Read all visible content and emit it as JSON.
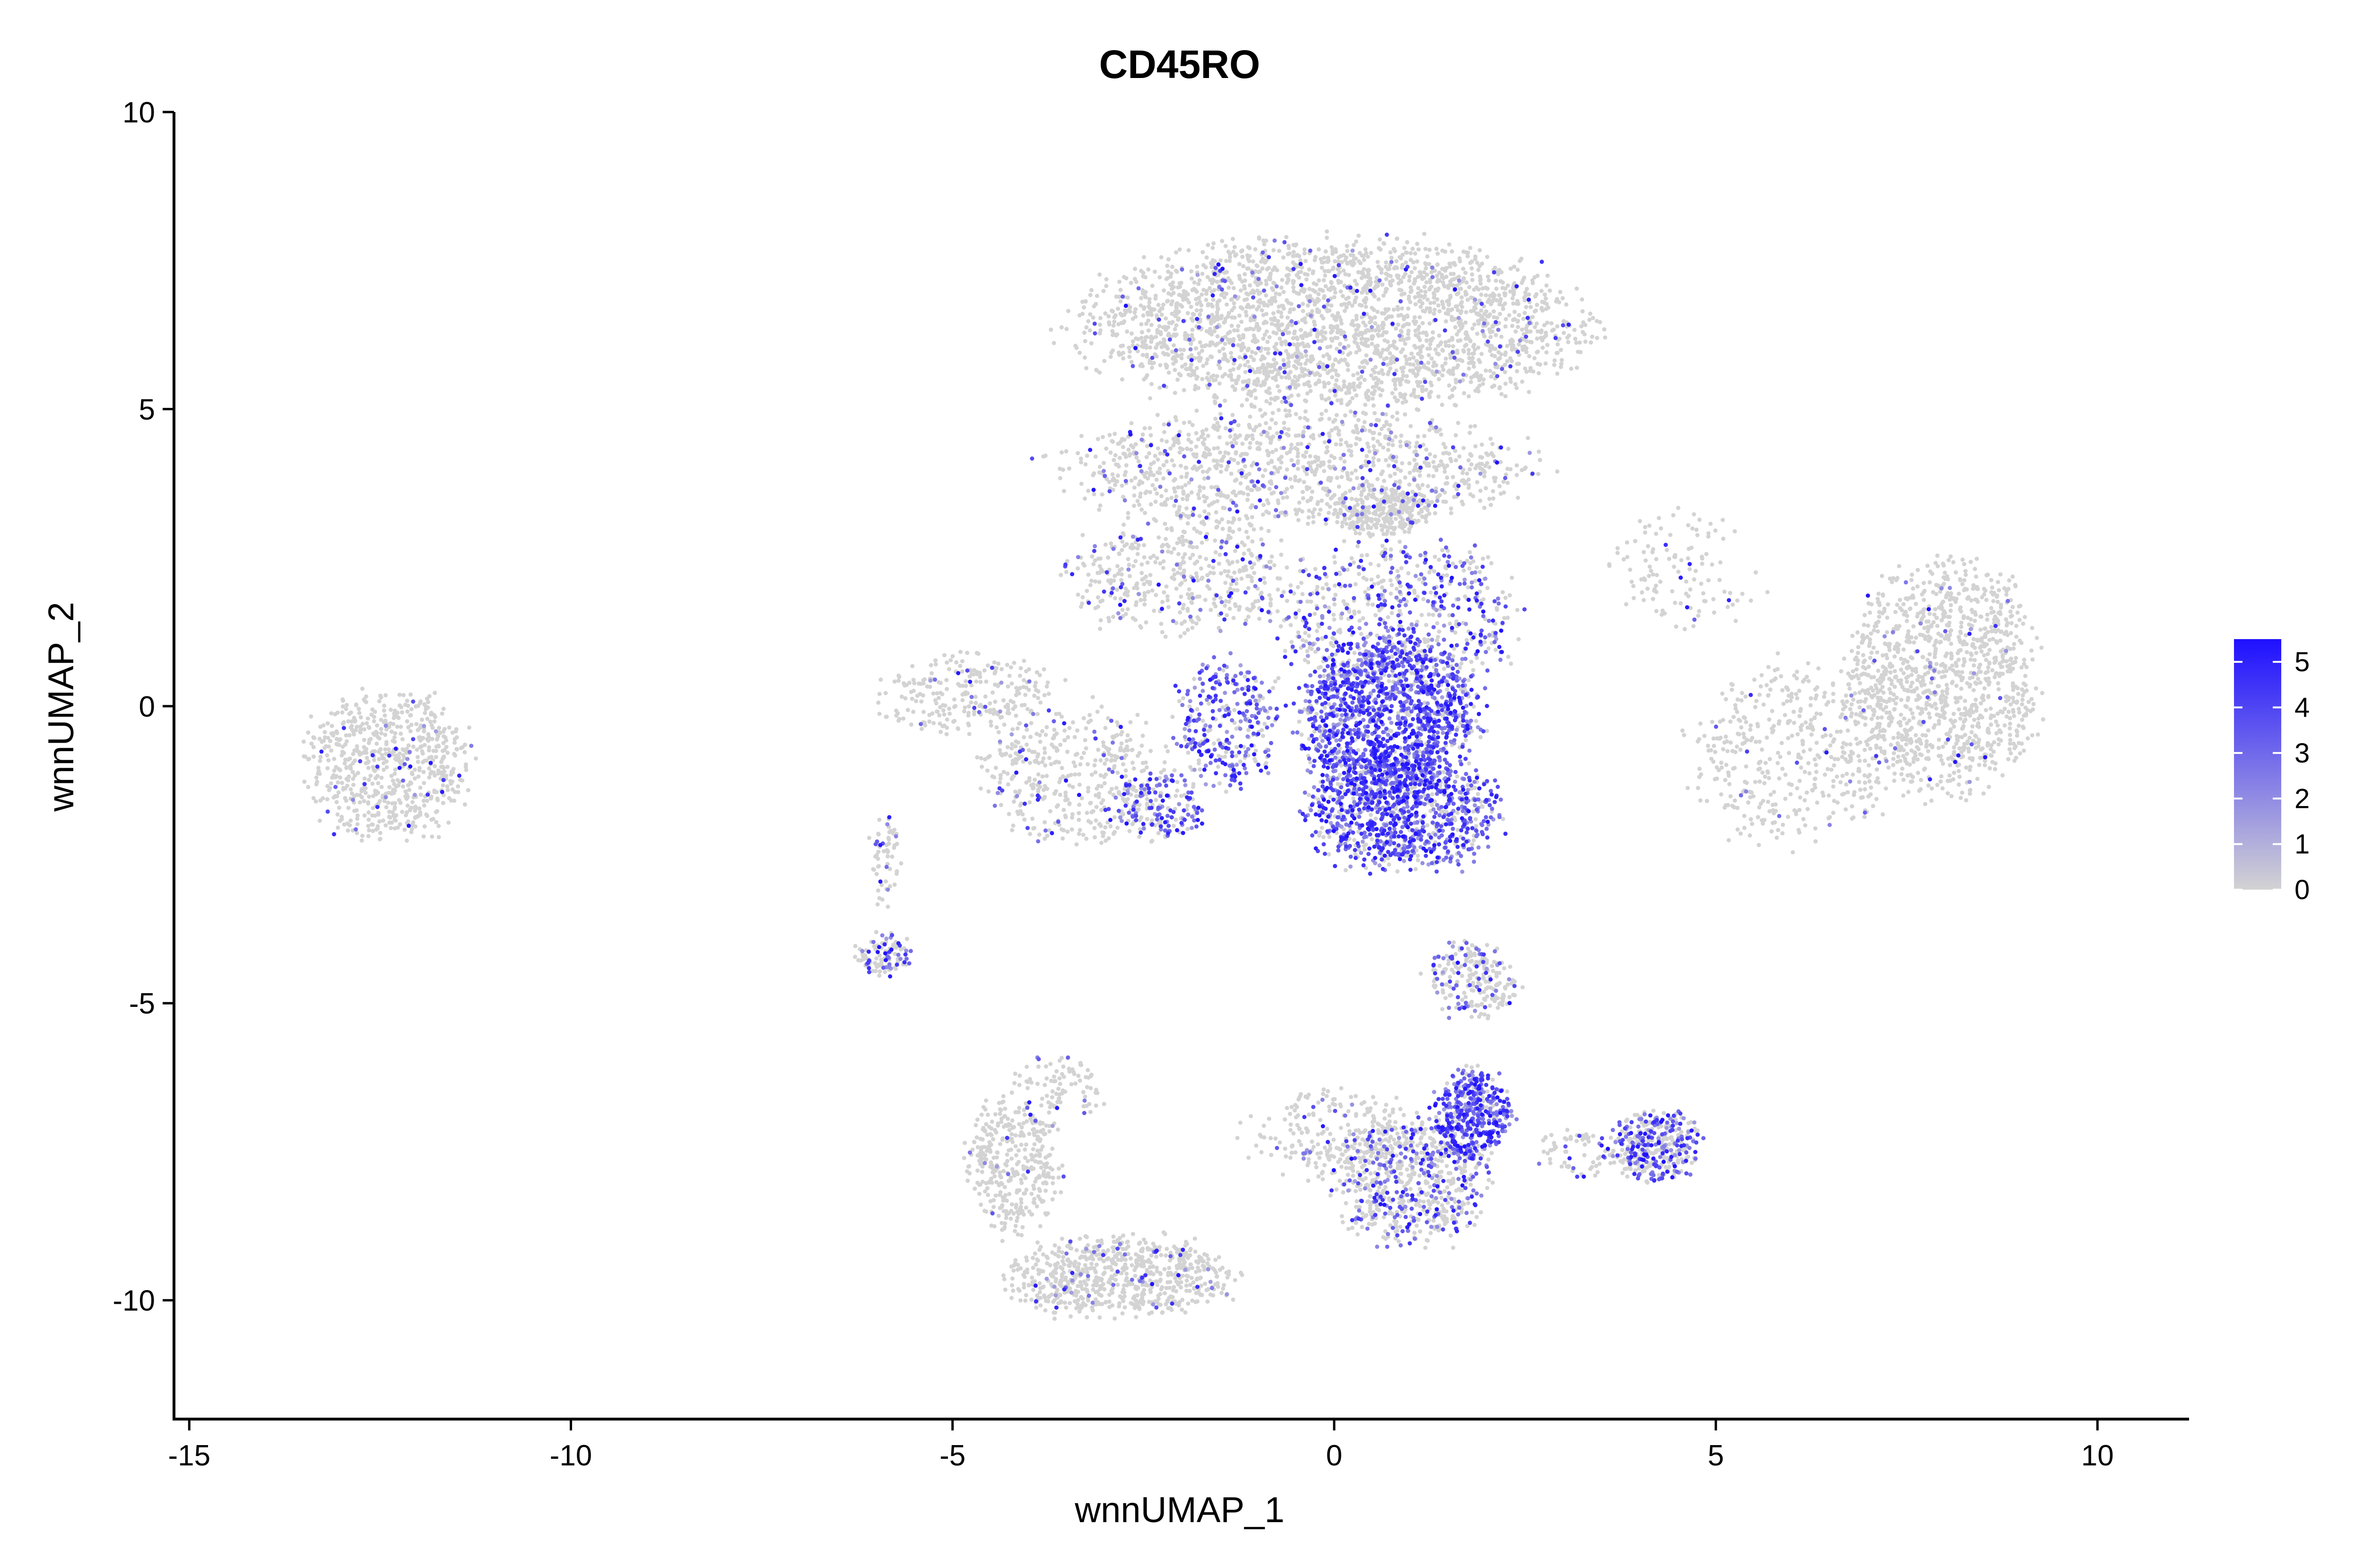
{
  "chart_data": {
    "type": "scatter",
    "title": "CD45RO",
    "xlabel": "wnnUMAP_1",
    "ylabel": "wnnUMAP_2",
    "xlim": [
      -15.2,
      11.2
    ],
    "ylim": [
      -12,
      10
    ],
    "xticks": [
      -15,
      -10,
      -5,
      0,
      5,
      10
    ],
    "yticks": [
      -10,
      -5,
      0,
      5,
      10
    ],
    "grid": false,
    "legend": {
      "type": "colorbar",
      "placement": "right",
      "min": 0,
      "max": 5.5,
      "ticks": [
        0,
        1,
        2,
        3,
        4,
        5
      ],
      "low_color": "#d3d3d3",
      "high_color": "#1e10ff"
    },
    "clusters": [
      {
        "cx": 0.0,
        "cy": 6.4,
        "rx": 3.4,
        "ry": 1.5,
        "n": 2600,
        "expr": 0.05
      },
      {
        "cx": -0.5,
        "cy": 4.0,
        "rx": 3.2,
        "ry": 1.0,
        "n": 1100,
        "expr": 0.12
      },
      {
        "cx": -2.0,
        "cy": 2.2,
        "rx": 1.6,
        "ry": 1.0,
        "n": 450,
        "expr": 0.15
      },
      {
        "cx": 0.8,
        "cy": 1.5,
        "rx": 1.7,
        "ry": 1.4,
        "n": 650,
        "expr": 0.45
      },
      {
        "cx": 0.7,
        "cy": -0.2,
        "rx": 1.2,
        "ry": 1.4,
        "n": 1400,
        "expr": 0.85
      },
      {
        "cx": 0.9,
        "cy": -1.8,
        "rx": 1.3,
        "ry": 1.0,
        "n": 1000,
        "expr": 0.75
      },
      {
        "cx": -1.4,
        "cy": -0.3,
        "rx": 0.7,
        "ry": 1.1,
        "n": 320,
        "expr": 0.7
      },
      {
        "cx": -2.3,
        "cy": -1.7,
        "rx": 0.6,
        "ry": 0.6,
        "n": 180,
        "expr": 0.6
      },
      {
        "cx": -3.4,
        "cy": -1.2,
        "rx": 1.3,
        "ry": 1.2,
        "n": 420,
        "expr": 0.1
      },
      {
        "cx": -4.8,
        "cy": 0.2,
        "rx": 1.2,
        "ry": 0.7,
        "n": 260,
        "expr": 0.05
      },
      {
        "cx": -12.4,
        "cy": -1.0,
        "rx": 1.1,
        "ry": 1.3,
        "n": 700,
        "expr": 0.04
      },
      {
        "cx": 8.0,
        "cy": 0.5,
        "rx": 1.3,
        "ry": 2.0,
        "n": 1200,
        "expr": 0.03
      },
      {
        "cx": 6.0,
        "cy": -0.8,
        "rx": 1.4,
        "ry": 1.6,
        "n": 450,
        "expr": 0.03
      },
      {
        "cx": 4.6,
        "cy": 2.3,
        "rx": 1.0,
        "ry": 1.0,
        "n": 120,
        "expr": 0.03
      },
      {
        "cx": -5.9,
        "cy": -4.2,
        "rx": 0.35,
        "ry": 0.35,
        "n": 110,
        "expr": 0.45
      },
      {
        "cx": -5.9,
        "cy": -2.6,
        "rx": 0.2,
        "ry": 0.9,
        "n": 60,
        "expr": 0.2
      },
      {
        "cx": 1.8,
        "cy": -6.9,
        "rx": 0.5,
        "ry": 0.8,
        "n": 450,
        "expr": 0.85
      },
      {
        "cx": 1.0,
        "cy": -8.0,
        "rx": 1.0,
        "ry": 1.1,
        "n": 650,
        "expr": 0.3
      },
      {
        "cx": 0.0,
        "cy": -7.2,
        "rx": 1.2,
        "ry": 0.8,
        "n": 260,
        "expr": 0.08
      },
      {
        "cx": 1.8,
        "cy": -4.6,
        "rx": 0.6,
        "ry": 0.7,
        "n": 230,
        "expr": 0.25
      },
      {
        "cx": 4.2,
        "cy": -7.4,
        "rx": 0.6,
        "ry": 0.6,
        "n": 380,
        "expr": 0.5
      },
      {
        "cx": 3.2,
        "cy": -7.5,
        "rx": 0.6,
        "ry": 0.4,
        "n": 70,
        "expr": 0.1
      },
      {
        "cx": -4.2,
        "cy": -7.7,
        "rx": 0.6,
        "ry": 1.2,
        "n": 380,
        "expr": 0.04
      },
      {
        "cx": -2.8,
        "cy": -9.6,
        "rx": 1.5,
        "ry": 0.7,
        "n": 750,
        "expr": 0.06
      },
      {
        "cx": -3.6,
        "cy": -6.4,
        "rx": 0.6,
        "ry": 0.5,
        "n": 90,
        "expr": 0.04
      },
      {
        "cx": 0.6,
        "cy": 3.3,
        "rx": 0.7,
        "ry": 0.4,
        "n": 260,
        "expr": 0.05
      }
    ]
  }
}
